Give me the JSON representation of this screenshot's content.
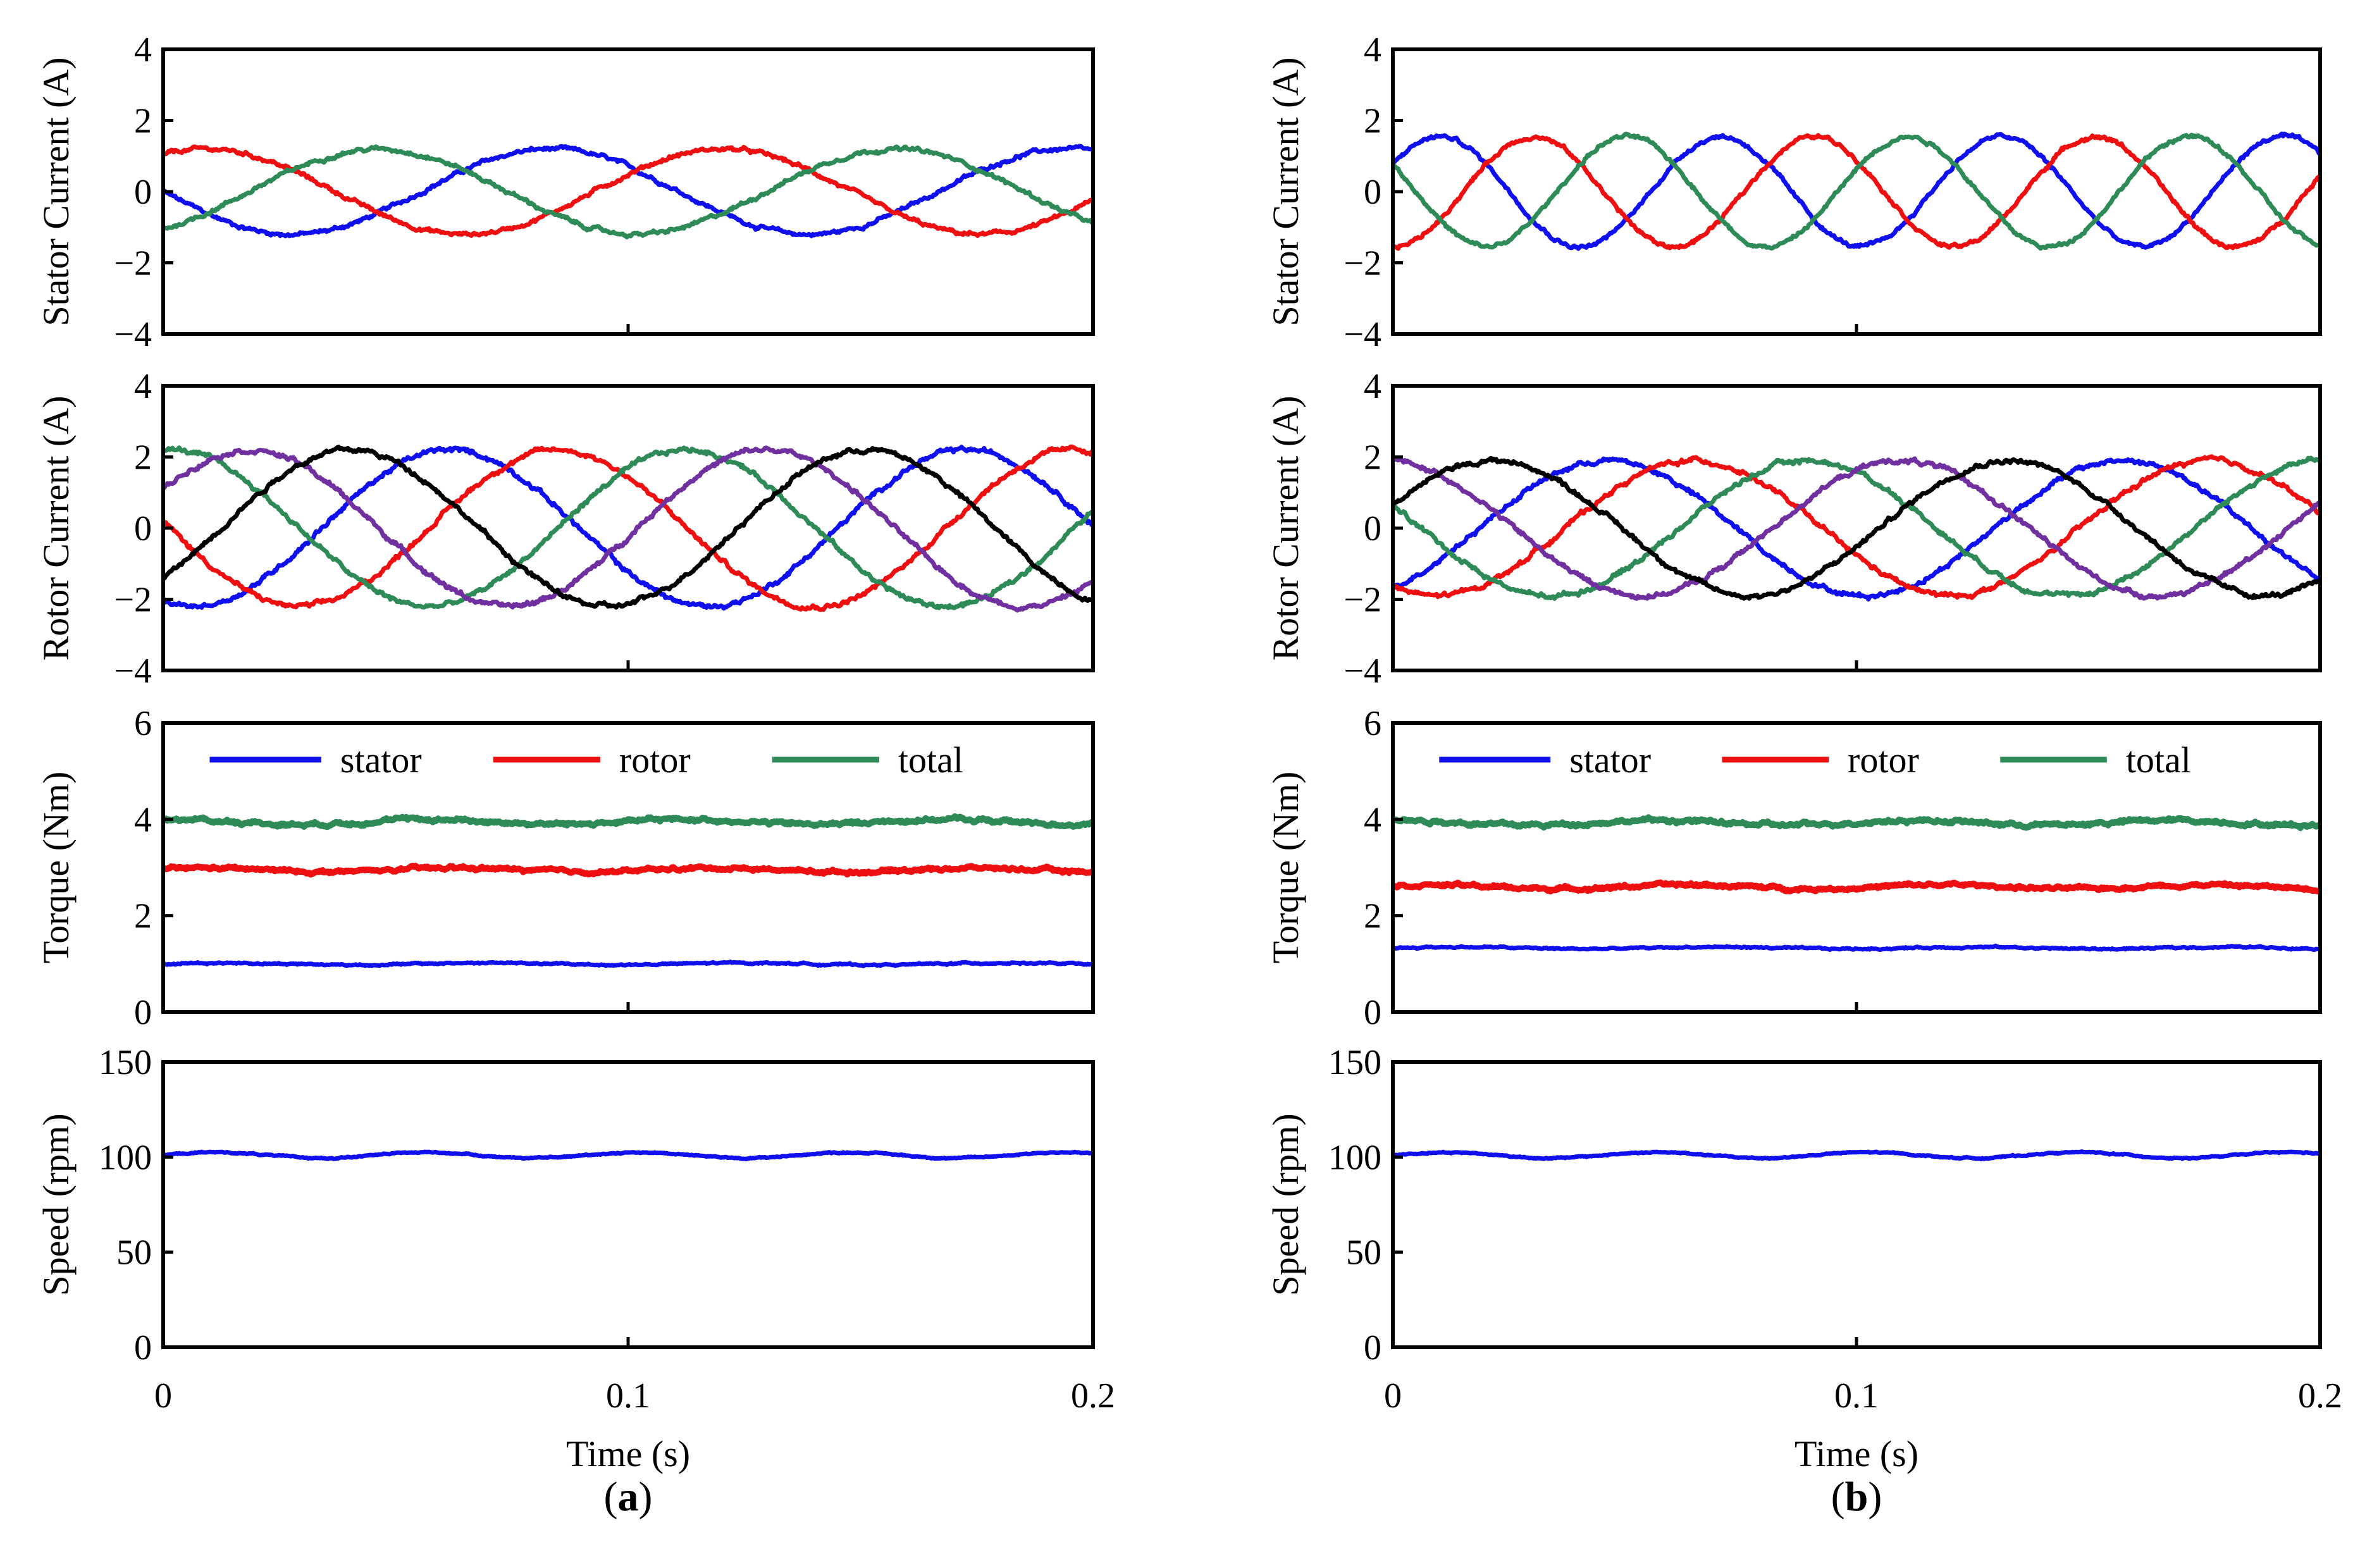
{
  "colors": {
    "blue": "#1010ee",
    "red": "#ee1010",
    "green": "#2e8b57",
    "purple": "#7030a0",
    "black": "#000000"
  },
  "shared_x": {
    "label": "Time (s)",
    "range": [
      0,
      0.2
    ],
    "ticks": [
      0,
      0.1,
      0.2
    ],
    "tick_labels": [
      "0",
      "0.1",
      "0.2"
    ]
  },
  "columns": [
    {
      "id": "a",
      "caption": {
        "open": "(",
        "letter": "a",
        "close": ")"
      }
    },
    {
      "id": "b",
      "caption": {
        "open": "(",
        "letter": "b",
        "close": ")"
      }
    }
  ],
  "chart_data": [
    {
      "column": "a",
      "type": "line",
      "ylabel": "Stator Current (A)",
      "ylim": [
        -4,
        4
      ],
      "yticks": [
        -4,
        -2,
        0,
        2,
        4
      ],
      "ytick_labels": [
        "−4",
        "−2",
        "0",
        "2",
        "4"
      ],
      "legend": [],
      "series": [
        {
          "color": "blue",
          "kind": "sine",
          "amplitude": 1.2,
          "frequency_hz": 9,
          "phase_deg": 180,
          "offset": 0,
          "noise": 0.05
        },
        {
          "color": "red",
          "kind": "sine",
          "amplitude": 1.2,
          "frequency_hz": 9,
          "phase_deg": 60,
          "offset": 0,
          "noise": 0.05
        },
        {
          "color": "green",
          "kind": "sine",
          "amplitude": 1.2,
          "frequency_hz": 9,
          "phase_deg": -60,
          "offset": 0,
          "noise": 0.05
        }
      ]
    },
    {
      "column": "a",
      "type": "line",
      "ylabel": "Rotor Current (A)",
      "ylim": [
        -4,
        4
      ],
      "yticks": [
        -4,
        -2,
        0,
        2,
        4
      ],
      "ytick_labels": [
        "−4",
        "−2",
        "0",
        "2",
        "4"
      ],
      "legend": [],
      "series": [
        {
          "color": "blue",
          "kind": "sine",
          "amplitude": 2.2,
          "frequency_hz": 9,
          "phase_deg": -110,
          "offset": 0,
          "noise": 0.06
        },
        {
          "color": "red",
          "kind": "sine",
          "amplitude": 2.2,
          "frequency_hz": 9,
          "phase_deg": 175,
          "offset": 0,
          "noise": 0.06
        },
        {
          "color": "green",
          "kind": "sine",
          "amplitude": 2.2,
          "frequency_hz": 9,
          "phase_deg": 85,
          "offset": 0,
          "noise": 0.06
        },
        {
          "color": "purple",
          "kind": "sine",
          "amplitude": 2.2,
          "frequency_hz": 9,
          "phase_deg": 30,
          "offset": 0,
          "noise": 0.06
        },
        {
          "color": "black",
          "kind": "sine",
          "amplitude": 2.2,
          "frequency_hz": 9,
          "phase_deg": -40,
          "offset": 0,
          "noise": 0.06
        }
      ]
    },
    {
      "column": "a",
      "type": "line",
      "ylabel": "Torque (Nm)",
      "ylim": [
        0,
        6
      ],
      "yticks": [
        0,
        2,
        4,
        6
      ],
      "ytick_labels": [
        "0",
        "2",
        "4",
        "6"
      ],
      "legend": [
        {
          "name": "stator",
          "color": "blue"
        },
        {
          "name": "rotor",
          "color": "red"
        },
        {
          "name": "total",
          "color": "green"
        }
      ],
      "series": [
        {
          "name": "stator",
          "color": "blue",
          "kind": "flat",
          "offset": 1.0,
          "amplitude": 0.02,
          "frequency_hz": 18,
          "phase_deg": 0,
          "noise": 0.015
        },
        {
          "name": "rotor",
          "color": "red",
          "kind": "flat",
          "offset": 2.95,
          "amplitude": 0.04,
          "frequency_hz": 18,
          "phase_deg": 40,
          "noise": 0.03
        },
        {
          "name": "total",
          "color": "green",
          "kind": "flat",
          "offset": 3.95,
          "amplitude": 0.05,
          "frequency_hz": 18,
          "phase_deg": 80,
          "noise": 0.035
        }
      ]
    },
    {
      "column": "a",
      "type": "line",
      "ylabel": "Speed (rpm)",
      "ylim": [
        0,
        150
      ],
      "yticks": [
        0,
        50,
        100,
        150
      ],
      "ytick_labels": [
        "0",
        "50",
        "100",
        "150"
      ],
      "legend": [],
      "series": [
        {
          "color": "blue",
          "kind": "flat",
          "offset": 101,
          "amplitude": 1.5,
          "frequency_hz": 22,
          "phase_deg": 0,
          "noise": 0.3
        }
      ]
    },
    {
      "column": "b",
      "type": "line",
      "ylabel": "Stator Current (A)",
      "ylim": [
        -4,
        4
      ],
      "yticks": [
        -4,
        -2,
        0,
        2,
        4
      ],
      "ytick_labels": [
        "−4",
        "−2",
        "0",
        "2",
        "4"
      ],
      "legend": [],
      "series": [
        {
          "color": "blue",
          "kind": "sine",
          "amplitude": 1.55,
          "frequency_hz": 16.5,
          "phase_deg": 30,
          "offset": 0,
          "noise": 0.05
        },
        {
          "color": "red",
          "kind": "sine",
          "amplitude": 1.55,
          "frequency_hz": 16.5,
          "phase_deg": -90,
          "offset": 0,
          "noise": 0.05
        },
        {
          "color": "green",
          "kind": "sine",
          "amplitude": 1.55,
          "frequency_hz": 16.5,
          "phase_deg": 150,
          "offset": 0,
          "noise": 0.05
        }
      ]
    },
    {
      "column": "b",
      "type": "line",
      "ylabel": "Rotor Current (A)",
      "ylim": [
        -4,
        4
      ],
      "yticks": [
        -4,
        -2,
        0,
        2,
        4
      ],
      "ytick_labels": [
        "−4",
        "−2",
        "0",
        "2",
        "4"
      ],
      "legend": [],
      "series": [
        {
          "color": "blue",
          "kind": "sine",
          "amplitude": 1.9,
          "frequency_hz": 9,
          "phase_deg": -60,
          "offset": 0,
          "noise": 0.06
        },
        {
          "color": "red",
          "kind": "sine",
          "amplitude": 1.9,
          "frequency_hz": 9,
          "phase_deg": -120,
          "offset": 0,
          "noise": 0.06
        },
        {
          "color": "green",
          "kind": "sine",
          "amplitude": 1.9,
          "frequency_hz": 9,
          "phase_deg": 160,
          "offset": 0,
          "noise": 0.06
        },
        {
          "color": "purple",
          "kind": "sine",
          "amplitude": 1.9,
          "frequency_hz": 9,
          "phase_deg": 95,
          "offset": 0,
          "noise": 0.06
        },
        {
          "color": "black",
          "kind": "sine",
          "amplitude": 1.9,
          "frequency_hz": 9,
          "phase_deg": 20,
          "offset": 0,
          "noise": 0.06
        }
      ]
    },
    {
      "column": "b",
      "type": "line",
      "ylabel": "Torque (Nm)",
      "ylim": [
        0,
        6
      ],
      "yticks": [
        0,
        2,
        4,
        6
      ],
      "ytick_labels": [
        "0",
        "2",
        "4",
        "6"
      ],
      "legend": [
        {
          "name": "stator",
          "color": "blue"
        },
        {
          "name": "rotor",
          "color": "red"
        },
        {
          "name": "total",
          "color": "green"
        }
      ],
      "series": [
        {
          "name": "stator",
          "color": "blue",
          "kind": "flat",
          "offset": 1.33,
          "amplitude": 0.02,
          "frequency_hz": 18,
          "phase_deg": 0,
          "noise": 0.015
        },
        {
          "name": "rotor",
          "color": "red",
          "kind": "flat",
          "offset": 2.6,
          "amplitude": 0.04,
          "frequency_hz": 18,
          "phase_deg": 40,
          "noise": 0.03
        },
        {
          "name": "total",
          "color": "green",
          "kind": "flat",
          "offset": 3.93,
          "amplitude": 0.05,
          "frequency_hz": 18,
          "phase_deg": 80,
          "noise": 0.035
        }
      ]
    },
    {
      "column": "b",
      "type": "line",
      "ylabel": "Speed (rpm)",
      "ylim": [
        0,
        150
      ],
      "yticks": [
        0,
        50,
        100,
        150
      ],
      "ytick_labels": [
        "0",
        "50",
        "100",
        "150"
      ],
      "legend": [],
      "series": [
        {
          "color": "blue",
          "kind": "flat",
          "offset": 101,
          "amplitude": 1.5,
          "frequency_hz": 22,
          "phase_deg": 0,
          "noise": 0.3
        }
      ]
    }
  ]
}
